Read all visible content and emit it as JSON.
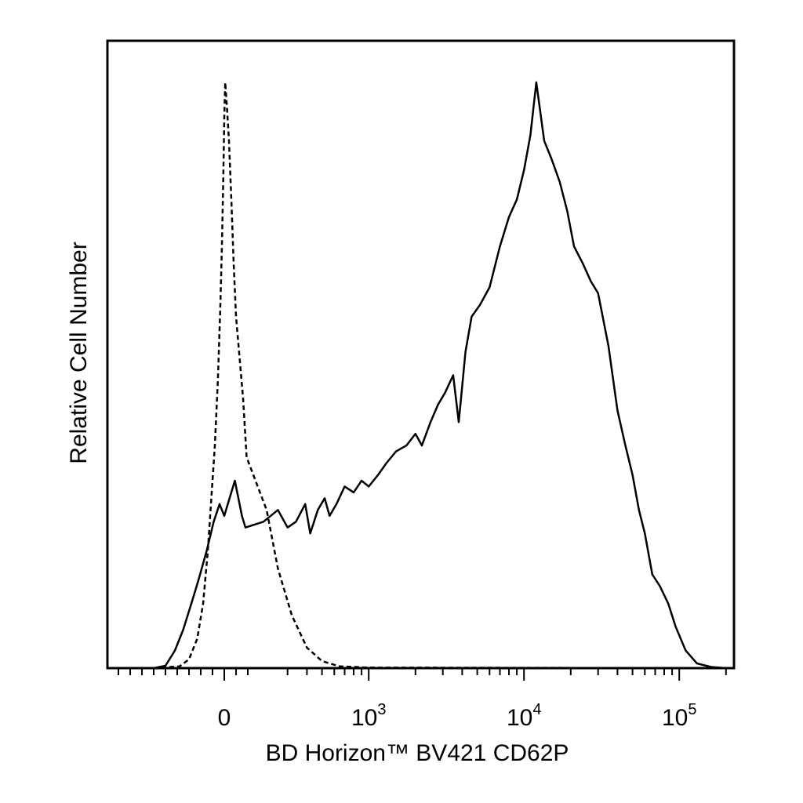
{
  "chart_data": {
    "type": "line",
    "title": "",
    "xlabel": "BD Horizon™ BV421 CD62P",
    "ylabel": "Relative Cell Number",
    "x_scale": "biexponential",
    "x_tick_labels": [
      {
        "base": "0",
        "exp": ""
      },
      {
        "base": "10",
        "exp": "3"
      },
      {
        "base": "10",
        "exp": "4"
      },
      {
        "base": "10",
        "exp": "5"
      }
    ],
    "xlim": [
      -600,
      200000
    ],
    "ylim": [
      0,
      1
    ],
    "grid": false,
    "legend": "none",
    "series": [
      {
        "style": "dashed",
        "color": "#000000",
        "points": [
          [
            -600,
            0
          ],
          [
            -380,
            0.003
          ],
          [
            -300,
            0.015
          ],
          [
            -230,
            0.05
          ],
          [
            -180,
            0.11
          ],
          [
            -140,
            0.2
          ],
          [
            -110,
            0.29
          ],
          [
            -80,
            0.38
          ],
          [
            -55,
            0.49
          ],
          [
            -35,
            0.61
          ],
          [
            -20,
            0.72
          ],
          [
            -8,
            0.84
          ],
          [
            0,
            0.94
          ],
          [
            8,
            1.0
          ],
          [
            22,
            0.96
          ],
          [
            40,
            0.9
          ],
          [
            60,
            0.8
          ],
          [
            80,
            0.69
          ],
          [
            100,
            0.6
          ],
          [
            130,
            0.53
          ],
          [
            160,
            0.46
          ],
          [
            190,
            0.36
          ],
          [
            220,
            0.27
          ],
          [
            260,
            0.17
          ],
          [
            320,
            0.09
          ],
          [
            400,
            0.035
          ],
          [
            500,
            0.012
          ],
          [
            650,
            0.003
          ],
          [
            1000,
            0.001
          ],
          [
            200000,
            0
          ]
        ]
      },
      {
        "style": "solid",
        "color": "#000000",
        "points": [
          [
            -600,
            0
          ],
          [
            -500,
            0.004
          ],
          [
            -420,
            0.03
          ],
          [
            -350,
            0.065
          ],
          [
            -280,
            0.11
          ],
          [
            -220,
            0.15
          ],
          [
            -150,
            0.2
          ],
          [
            -90,
            0.25
          ],
          [
            -40,
            0.28
          ],
          [
            0,
            0.26
          ],
          [
            30,
            0.28
          ],
          [
            60,
            0.3
          ],
          [
            90,
            0.32
          ],
          [
            120,
            0.29
          ],
          [
            150,
            0.26
          ],
          [
            180,
            0.24
          ],
          [
            210,
            0.25
          ],
          [
            260,
            0.27
          ],
          [
            300,
            0.24
          ],
          [
            340,
            0.25
          ],
          [
            390,
            0.28
          ],
          [
            420,
            0.23
          ],
          [
            470,
            0.27
          ],
          [
            520,
            0.29
          ],
          [
            560,
            0.26
          ],
          [
            620,
            0.28
          ],
          [
            700,
            0.31
          ],
          [
            800,
            0.3
          ],
          [
            900,
            0.32
          ],
          [
            1000,
            0.31
          ],
          [
            1150,
            0.33
          ],
          [
            1300,
            0.35
          ],
          [
            1500,
            0.37
          ],
          [
            1750,
            0.38
          ],
          [
            2000,
            0.4
          ],
          [
            2200,
            0.38
          ],
          [
            2500,
            0.42
          ],
          [
            2800,
            0.45
          ],
          [
            3100,
            0.47
          ],
          [
            3500,
            0.5
          ],
          [
            3800,
            0.42
          ],
          [
            4200,
            0.54
          ],
          [
            4600,
            0.6
          ],
          [
            5200,
            0.62
          ],
          [
            6000,
            0.65
          ],
          [
            7000,
            0.72
          ],
          [
            8000,
            0.77
          ],
          [
            9000,
            0.8
          ],
          [
            10000,
            0.85
          ],
          [
            11000,
            0.91
          ],
          [
            12000,
            1.0
          ],
          [
            13500,
            0.9
          ],
          [
            15000,
            0.87
          ],
          [
            17000,
            0.83
          ],
          [
            19000,
            0.78
          ],
          [
            21000,
            0.72
          ],
          [
            24000,
            0.69
          ],
          [
            27000,
            0.66
          ],
          [
            30000,
            0.64
          ],
          [
            35000,
            0.55
          ],
          [
            40000,
            0.44
          ],
          [
            45000,
            0.38
          ],
          [
            50000,
            0.33
          ],
          [
            55000,
            0.27
          ],
          [
            60000,
            0.23
          ],
          [
            67000,
            0.16
          ],
          [
            75000,
            0.14
          ],
          [
            85000,
            0.11
          ],
          [
            95000,
            0.07
          ],
          [
            110000,
            0.03
          ],
          [
            130000,
            0.008
          ],
          [
            160000,
            0.002
          ],
          [
            200000,
            0
          ]
        ]
      }
    ]
  }
}
